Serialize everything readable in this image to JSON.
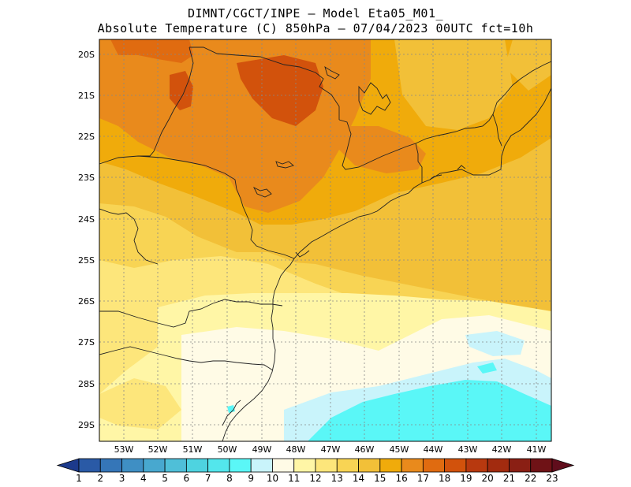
{
  "header": {
    "line1": "DIMNT/CGCT/INPE —  Model Eta05_M01_",
    "line2": "Absolute Temperature (C) 850hPa —  07/04/2023 00UTC fct=10h"
  },
  "map": {
    "region": "Southeastern and southern Brazil",
    "lat_labels": [
      "20S",
      "21S",
      "22S",
      "23S",
      "24S",
      "25S",
      "26S",
      "27S",
      "28S",
      "29S"
    ],
    "lon_labels": [
      "53W",
      "52W",
      "51W",
      "50W",
      "49W",
      "48W",
      "47W",
      "46W",
      "45W",
      "44W",
      "43W",
      "42W",
      "41W"
    ]
  },
  "colorbar": {
    "labels": [
      "1",
      "2",
      "3",
      "4",
      "5",
      "6",
      "7",
      "8",
      "9",
      "10",
      "11",
      "12",
      "13",
      "14",
      "15",
      "16",
      "17",
      "18",
      "19",
      "20",
      "21",
      "22",
      "23"
    ],
    "colors": [
      "#1c3a8c",
      "#2a5aa6",
      "#3576b8",
      "#3f8fc4",
      "#48a8cf",
      "#4fbfd8",
      "#4ed3e0",
      "#53e6ec",
      "#5af7f7",
      "#c9f4fb",
      "#fffbe6",
      "#fff6a6",
      "#fde67b",
      "#f8d454",
      "#f2c038",
      "#f0ab0b",
      "#e98a1c",
      "#e06b10",
      "#d2520c",
      "#b8390f",
      "#a22b0f",
      "#8a1f14",
      "#6f1216",
      "#600d1c"
    ]
  }
}
